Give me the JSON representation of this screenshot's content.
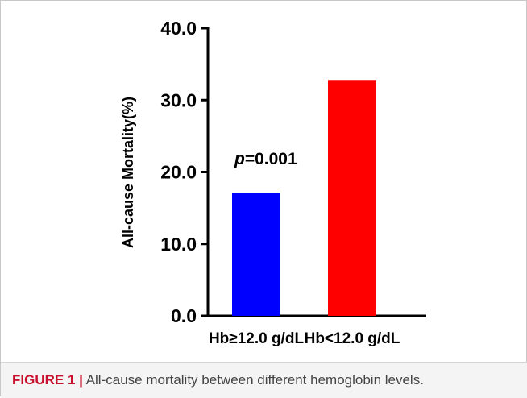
{
  "chart_data": {
    "type": "bar",
    "categories": [
      "Hb≥12.0 g/dL",
      "Hb<12.0 g/dL"
    ],
    "values": [
      17.1,
      32.8
    ],
    "colors": [
      "#0000ff",
      "#ff0000"
    ],
    "ylabel": "All-cause Mortality(%)",
    "xlabel": "",
    "ylim": [
      0,
      40
    ],
    "yticks": [
      "0.0",
      "10.0",
      "20.0",
      "30.0",
      "40.0"
    ],
    "annotation": {
      "italic": "p",
      "text": "=0.001"
    },
    "grid": false
  },
  "caption": {
    "label": "FIGURE 1 |",
    "text": "All-cause mortality between different hemoglobin levels."
  }
}
